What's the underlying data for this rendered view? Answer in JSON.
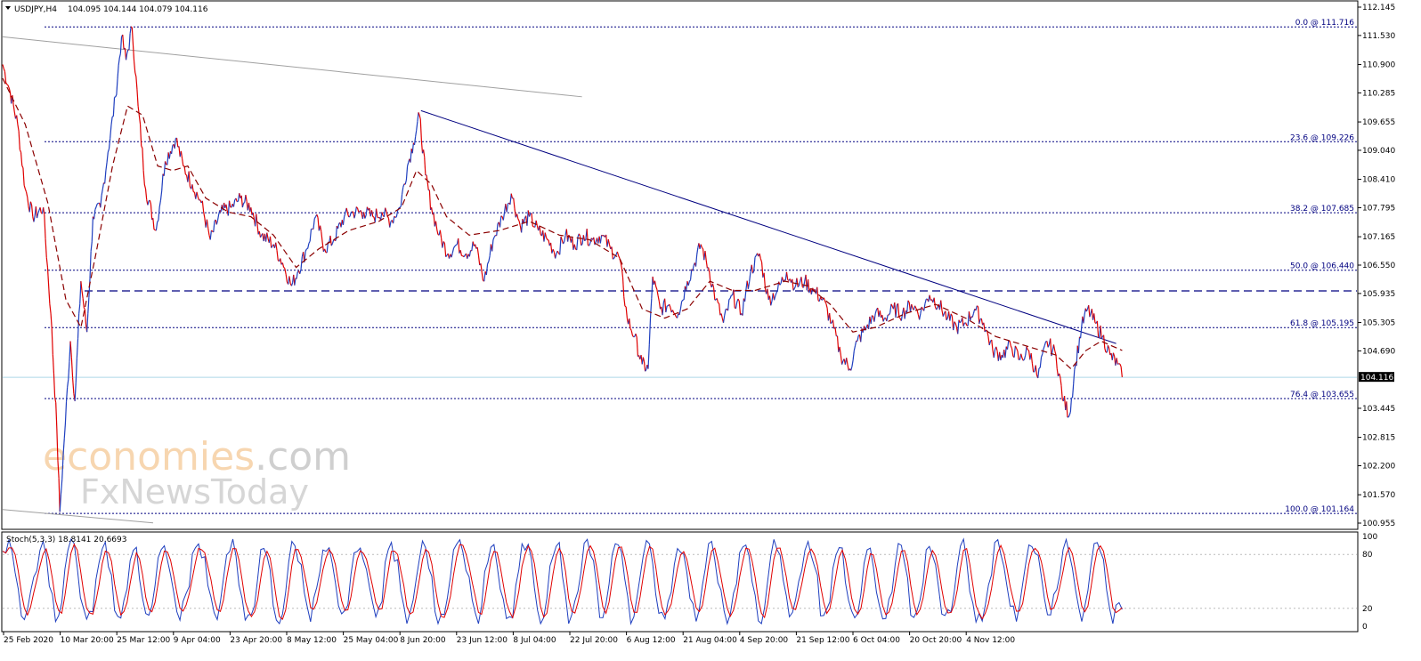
{
  "header": {
    "symbol": "USDJPY,H4",
    "ohlc": "104.095 104.144 104.079 104.116"
  },
  "watermark": {
    "line1": "economies",
    "line1_suffix": ".com",
    "line2": "FxNewsToday"
  },
  "colors": {
    "bearish": "#e00000",
    "bullish": "#1f3fbf",
    "ma": "#8b0000",
    "fib": "#000080",
    "trendline": "#000080",
    "current_price": "#add8e6",
    "stoch_main": "#1f3fbf",
    "stoch_signal": "#e00000"
  },
  "chart_data": {
    "type": "line",
    "symbol": "USDJPY",
    "timeframe": "H4",
    "current_price": "104.116",
    "y_range": [
      100.955,
      112.145
    ],
    "y_ticks": [
      "112.145",
      "111.530",
      "110.900",
      "110.285",
      "109.655",
      "109.040",
      "108.410",
      "107.795",
      "107.165",
      "106.550",
      "105.935",
      "105.305",
      "104.690",
      "104.116",
      "103.445",
      "102.815",
      "102.200",
      "101.570",
      "100.955"
    ],
    "x_labels": [
      "25 Feb 2020",
      "10 Mar 20:00",
      "25 Mar 12:00",
      "9 Apr 04:00",
      "23 Apr 20:00",
      "8 May 12:00",
      "25 May 04:00",
      "8 Jun 20:00",
      "23 Jun 12:00",
      "8 Jul 04:00",
      "22 Jul 20:00",
      "6 Aug 12:00",
      "21 Aug 04:00",
      "4 Sep 20:00",
      "21 Sep 12:00",
      "6 Oct 04:00",
      "20 Oct 20:00",
      "4 Nov 12:00"
    ],
    "fibonacci": [
      {
        "label": "0.0 @ 111.716",
        "price": 111.716
      },
      {
        "label": "23.6 @ 109.226",
        "price": 109.226
      },
      {
        "label": "38.2 @ 107.685",
        "price": 107.685
      },
      {
        "label": "50.0 @ 106.440",
        "price": 106.44
      },
      {
        "label": "61.8 @ 105.195",
        "price": 105.195
      },
      {
        "label": "76.4 @ 103.655",
        "price": 103.655
      },
      {
        "label": "100.0 @ 101.164",
        "price": 101.164
      }
    ],
    "horizontal_level": 105.99,
    "price_path": [
      {
        "t": 0,
        "v": 110.9
      },
      {
        "t": 0.5,
        "v": 110.3
      },
      {
        "t": 1,
        "v": 109.6
      },
      {
        "t": 1.5,
        "v": 108.2
      },
      {
        "t": 2,
        "v": 107.6
      },
      {
        "t": 2.7,
        "v": 107.8
      },
      {
        "t": 3.2,
        "v": 105.5
      },
      {
        "t": 3.6,
        "v": 103.0
      },
      {
        "t": 3.8,
        "v": 101.2
      },
      {
        "t": 4.1,
        "v": 102.8
      },
      {
        "t": 4.5,
        "v": 104.9
      },
      {
        "t": 4.8,
        "v": 103.6
      },
      {
        "t": 5.2,
        "v": 106.2
      },
      {
        "t": 5.6,
        "v": 105.1
      },
      {
        "t": 6.0,
        "v": 107.6
      },
      {
        "t": 6.5,
        "v": 107.8
      },
      {
        "t": 7.0,
        "v": 109.0
      },
      {
        "t": 7.5,
        "v": 110.2
      },
      {
        "t": 7.9,
        "v": 111.5
      },
      {
        "t": 8.2,
        "v": 111.0
      },
      {
        "t": 8.6,
        "v": 111.7
      },
      {
        "t": 9.0,
        "v": 110.0
      },
      {
        "t": 9.5,
        "v": 108.2
      },
      {
        "t": 10.2,
        "v": 107.3
      },
      {
        "t": 10.8,
        "v": 108.8
      },
      {
        "t": 11.5,
        "v": 109.3
      },
      {
        "t": 12.0,
        "v": 108.7
      },
      {
        "t": 12.6,
        "v": 108.3
      },
      {
        "t": 13.2,
        "v": 107.9
      },
      {
        "t": 13.8,
        "v": 107.1
      },
      {
        "t": 14.5,
        "v": 107.7
      },
      {
        "t": 15.2,
        "v": 107.8
      },
      {
        "t": 15.8,
        "v": 108.0
      },
      {
        "t": 16.5,
        "v": 107.8
      },
      {
        "t": 17.2,
        "v": 107.2
      },
      {
        "t": 18.0,
        "v": 107.0
      },
      {
        "t": 18.6,
        "v": 106.6
      },
      {
        "t": 19.2,
        "v": 106.1
      },
      {
        "t": 19.6,
        "v": 106.4
      },
      {
        "t": 20.2,
        "v": 106.9
      },
      {
        "t": 20.8,
        "v": 107.6
      },
      {
        "t": 21.4,
        "v": 106.9
      },
      {
        "t": 22.0,
        "v": 107.1
      },
      {
        "t": 22.7,
        "v": 107.6
      },
      {
        "t": 23.3,
        "v": 107.7
      },
      {
        "t": 24.0,
        "v": 107.7
      },
      {
        "t": 24.6,
        "v": 107.6
      },
      {
        "t": 25.2,
        "v": 107.7
      },
      {
        "t": 25.8,
        "v": 107.5
      },
      {
        "t": 26.4,
        "v": 107.8
      },
      {
        "t": 26.9,
        "v": 108.7
      },
      {
        "t": 27.3,
        "v": 109.2
      },
      {
        "t": 27.7,
        "v": 109.8
      },
      {
        "t": 28.1,
        "v": 108.5
      },
      {
        "t": 28.5,
        "v": 107.8
      },
      {
        "t": 29.0,
        "v": 107.2
      },
      {
        "t": 29.6,
        "v": 106.8
      },
      {
        "t": 30.2,
        "v": 107.0
      },
      {
        "t": 30.8,
        "v": 106.8
      },
      {
        "t": 31.4,
        "v": 107.0
      },
      {
        "t": 32.0,
        "v": 106.2
      },
      {
        "t": 32.6,
        "v": 107.1
      },
      {
        "t": 33.2,
        "v": 107.6
      },
      {
        "t": 33.8,
        "v": 108.1
      },
      {
        "t": 34.4,
        "v": 107.4
      },
      {
        "t": 35.0,
        "v": 107.6
      },
      {
        "t": 35.6,
        "v": 107.3
      },
      {
        "t": 36.2,
        "v": 107.1
      },
      {
        "t": 36.8,
        "v": 106.8
      },
      {
        "t": 37.4,
        "v": 107.2
      },
      {
        "t": 38.0,
        "v": 107.0
      },
      {
        "t": 38.6,
        "v": 107.2
      },
      {
        "t": 39.2,
        "v": 107.1
      },
      {
        "t": 39.8,
        "v": 107.2
      },
      {
        "t": 40.4,
        "v": 106.9
      },
      {
        "t": 41.0,
        "v": 106.7
      },
      {
        "t": 41.5,
        "v": 105.4
      },
      {
        "t": 42.0,
        "v": 105.0
      },
      {
        "t": 42.5,
        "v": 104.4
      },
      {
        "t": 42.9,
        "v": 104.3
      },
      {
        "t": 43.2,
        "v": 106.3
      },
      {
        "t": 43.7,
        "v": 105.6
      },
      {
        "t": 44.3,
        "v": 105.7
      },
      {
        "t": 44.9,
        "v": 105.5
      },
      {
        "t": 45.5,
        "v": 106.2
      },
      {
        "t": 46.0,
        "v": 106.6
      },
      {
        "t": 46.4,
        "v": 107.0
      },
      {
        "t": 46.9,
        "v": 106.5
      },
      {
        "t": 47.4,
        "v": 105.8
      },
      {
        "t": 47.9,
        "v": 105.3
      },
      {
        "t": 48.5,
        "v": 105.9
      },
      {
        "t": 49.1,
        "v": 105.5
      },
      {
        "t": 49.7,
        "v": 106.4
      },
      {
        "t": 50.3,
        "v": 106.8
      },
      {
        "t": 50.9,
        "v": 105.8
      },
      {
        "t": 51.5,
        "v": 106.0
      },
      {
        "t": 52.1,
        "v": 106.4
      },
      {
        "t": 52.7,
        "v": 106.1
      },
      {
        "t": 53.3,
        "v": 106.2
      },
      {
        "t": 53.9,
        "v": 106.0
      },
      {
        "t": 54.5,
        "v": 105.8
      },
      {
        "t": 55.1,
        "v": 105.3
      },
      {
        "t": 55.7,
        "v": 104.6
      },
      {
        "t": 56.3,
        "v": 104.3
      },
      {
        "t": 56.8,
        "v": 104.9
      },
      {
        "t": 57.4,
        "v": 105.2
      },
      {
        "t": 58.0,
        "v": 105.5
      },
      {
        "t": 58.6,
        "v": 105.4
      },
      {
        "t": 59.2,
        "v": 105.6
      },
      {
        "t": 59.8,
        "v": 105.5
      },
      {
        "t": 60.4,
        "v": 105.7
      },
      {
        "t": 61.0,
        "v": 105.5
      },
      {
        "t": 61.6,
        "v": 105.9
      },
      {
        "t": 62.2,
        "v": 105.7
      },
      {
        "t": 62.8,
        "v": 105.4
      },
      {
        "t": 63.4,
        "v": 105.2
      },
      {
        "t": 64.0,
        "v": 105.3
      },
      {
        "t": 64.6,
        "v": 105.6
      },
      {
        "t": 65.2,
        "v": 105.3
      },
      {
        "t": 65.8,
        "v": 104.7
      },
      {
        "t": 66.4,
        "v": 104.6
      },
      {
        "t": 67.0,
        "v": 104.8
      },
      {
        "t": 67.6,
        "v": 104.5
      },
      {
        "t": 68.2,
        "v": 104.7
      },
      {
        "t": 68.8,
        "v": 104.1
      },
      {
        "t": 69.4,
        "v": 104.9
      },
      {
        "t": 70.0,
        "v": 104.6
      },
      {
        "t": 70.5,
        "v": 103.6
      },
      {
        "t": 70.9,
        "v": 103.3
      },
      {
        "t": 71.3,
        "v": 104.4
      },
      {
        "t": 71.7,
        "v": 105.2
      },
      {
        "t": 72.1,
        "v": 105.6
      },
      {
        "t": 72.6,
        "v": 105.3
      },
      {
        "t": 73.1,
        "v": 105.0
      },
      {
        "t": 73.6,
        "v": 104.6
      },
      {
        "t": 74.1,
        "v": 104.4
      },
      {
        "t": 74.4,
        "v": 104.12
      }
    ],
    "moving_average_path": [
      {
        "t": 0,
        "v": 110.6
      },
      {
        "t": 1.5,
        "v": 109.6
      },
      {
        "t": 3.0,
        "v": 107.9
      },
      {
        "t": 4.2,
        "v": 105.8
      },
      {
        "t": 5.2,
        "v": 105.2
      },
      {
        "t": 6.2,
        "v": 106.8
      },
      {
        "t": 7.3,
        "v": 108.7
      },
      {
        "t": 8.3,
        "v": 110.0
      },
      {
        "t": 9.3,
        "v": 109.8
      },
      {
        "t": 10.3,
        "v": 108.7
      },
      {
        "t": 11.3,
        "v": 108.6
      },
      {
        "t": 12.3,
        "v": 108.7
      },
      {
        "t": 13.5,
        "v": 108.0
      },
      {
        "t": 15.0,
        "v": 107.7
      },
      {
        "t": 16.5,
        "v": 107.6
      },
      {
        "t": 18.0,
        "v": 107.2
      },
      {
        "t": 19.5,
        "v": 106.5
      },
      {
        "t": 21.0,
        "v": 106.9
      },
      {
        "t": 23.0,
        "v": 107.3
      },
      {
        "t": 25.0,
        "v": 107.5
      },
      {
        "t": 26.5,
        "v": 107.8
      },
      {
        "t": 27.5,
        "v": 108.6
      },
      {
        "t": 28.5,
        "v": 108.3
      },
      {
        "t": 29.5,
        "v": 107.6
      },
      {
        "t": 31.0,
        "v": 107.2
      },
      {
        "t": 33.0,
        "v": 107.3
      },
      {
        "t": 35.0,
        "v": 107.5
      },
      {
        "t": 37.0,
        "v": 107.2
      },
      {
        "t": 39.0,
        "v": 107.1
      },
      {
        "t": 41.0,
        "v": 106.7
      },
      {
        "t": 42.5,
        "v": 105.6
      },
      {
        "t": 44.0,
        "v": 105.4
      },
      {
        "t": 45.5,
        "v": 105.6
      },
      {
        "t": 47.0,
        "v": 106.2
      },
      {
        "t": 48.5,
        "v": 106.0
      },
      {
        "t": 50.0,
        "v": 106.0
      },
      {
        "t": 52.0,
        "v": 106.2
      },
      {
        "t": 53.5,
        "v": 106.1
      },
      {
        "t": 55.0,
        "v": 105.7
      },
      {
        "t": 56.5,
        "v": 105.1
      },
      {
        "t": 58.0,
        "v": 105.2
      },
      {
        "t": 60.0,
        "v": 105.5
      },
      {
        "t": 62.0,
        "v": 105.7
      },
      {
        "t": 64.0,
        "v": 105.4
      },
      {
        "t": 66.0,
        "v": 105.0
      },
      {
        "t": 68.0,
        "v": 104.8
      },
      {
        "t": 70.0,
        "v": 104.6
      },
      {
        "t": 71.0,
        "v": 104.3
      },
      {
        "t": 72.0,
        "v": 104.7
      },
      {
        "t": 73.0,
        "v": 104.9
      },
      {
        "t": 74.4,
        "v": 104.7
      }
    ],
    "trendlines": [
      {
        "name": "descending",
        "from": {
          "t": 27.8,
          "v": 109.9
        },
        "to": {
          "t": 74.0,
          "v": 104.85
        }
      },
      {
        "name": "upper-channel",
        "from": {
          "t": 0,
          "v": 111.5
        },
        "to": {
          "t": 38.5,
          "v": 110.2
        }
      },
      {
        "name": "lower-channel",
        "from": {
          "t": 0,
          "v": 101.25
        },
        "to": {
          "t": 10.0,
          "v": 100.96
        }
      }
    ],
    "stochastic": {
      "label": "Stoch(5,3,3) 18.8141 20.6693",
      "main": 18.8141,
      "signal": 20.6693,
      "levels": [
        20,
        80
      ],
      "y_ticks": [
        "100",
        "80",
        "20",
        "0"
      ]
    }
  }
}
